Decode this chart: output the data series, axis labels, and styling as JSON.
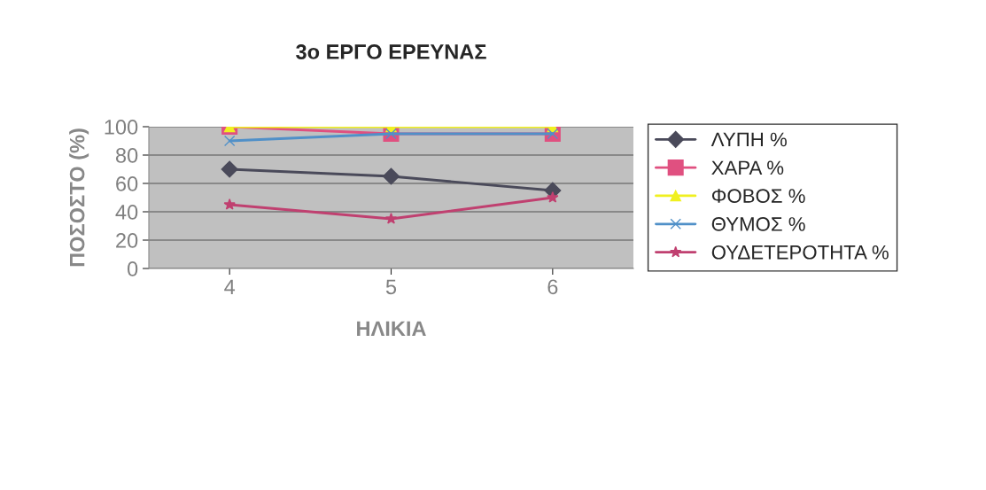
{
  "chart_data": {
    "type": "line",
    "title": "3ο ΕΡΓΟ ΕΡΕΥΝΑΣ",
    "xlabel": "ΗΛΙΚΙΑ",
    "ylabel": "ΠΟΣΟΣΤΟ (%)",
    "categories": [
      "4",
      "5",
      "6"
    ],
    "series": [
      {
        "name": "ΛΥΠΗ %",
        "color": "#4a4a5a",
        "marker": "diamond",
        "values": [
          70,
          65,
          55
        ]
      },
      {
        "name": "ΧΑΡΑ %",
        "color": "#e05080",
        "marker": "square",
        "values": [
          100,
          95,
          95
        ]
      },
      {
        "name": "ΦΟΒΟΣ %",
        "color": "#f0f020",
        "marker": "triangle",
        "values": [
          100,
          100,
          100
        ]
      },
      {
        "name": "ΘΥΜΟΣ %",
        "color": "#5090c8",
        "marker": "cross",
        "values": [
          90,
          95,
          95
        ]
      },
      {
        "name": "ΟΥΔΕΤΕΡΟΤΗΤΑ %",
        "color": "#c04070",
        "marker": "star",
        "values": [
          45,
          35,
          50
        ]
      }
    ],
    "ylim": [
      0,
      100
    ],
    "yticks": [
      0,
      20,
      40,
      60,
      80,
      100
    ],
    "grid": "y",
    "legend": "right"
  }
}
